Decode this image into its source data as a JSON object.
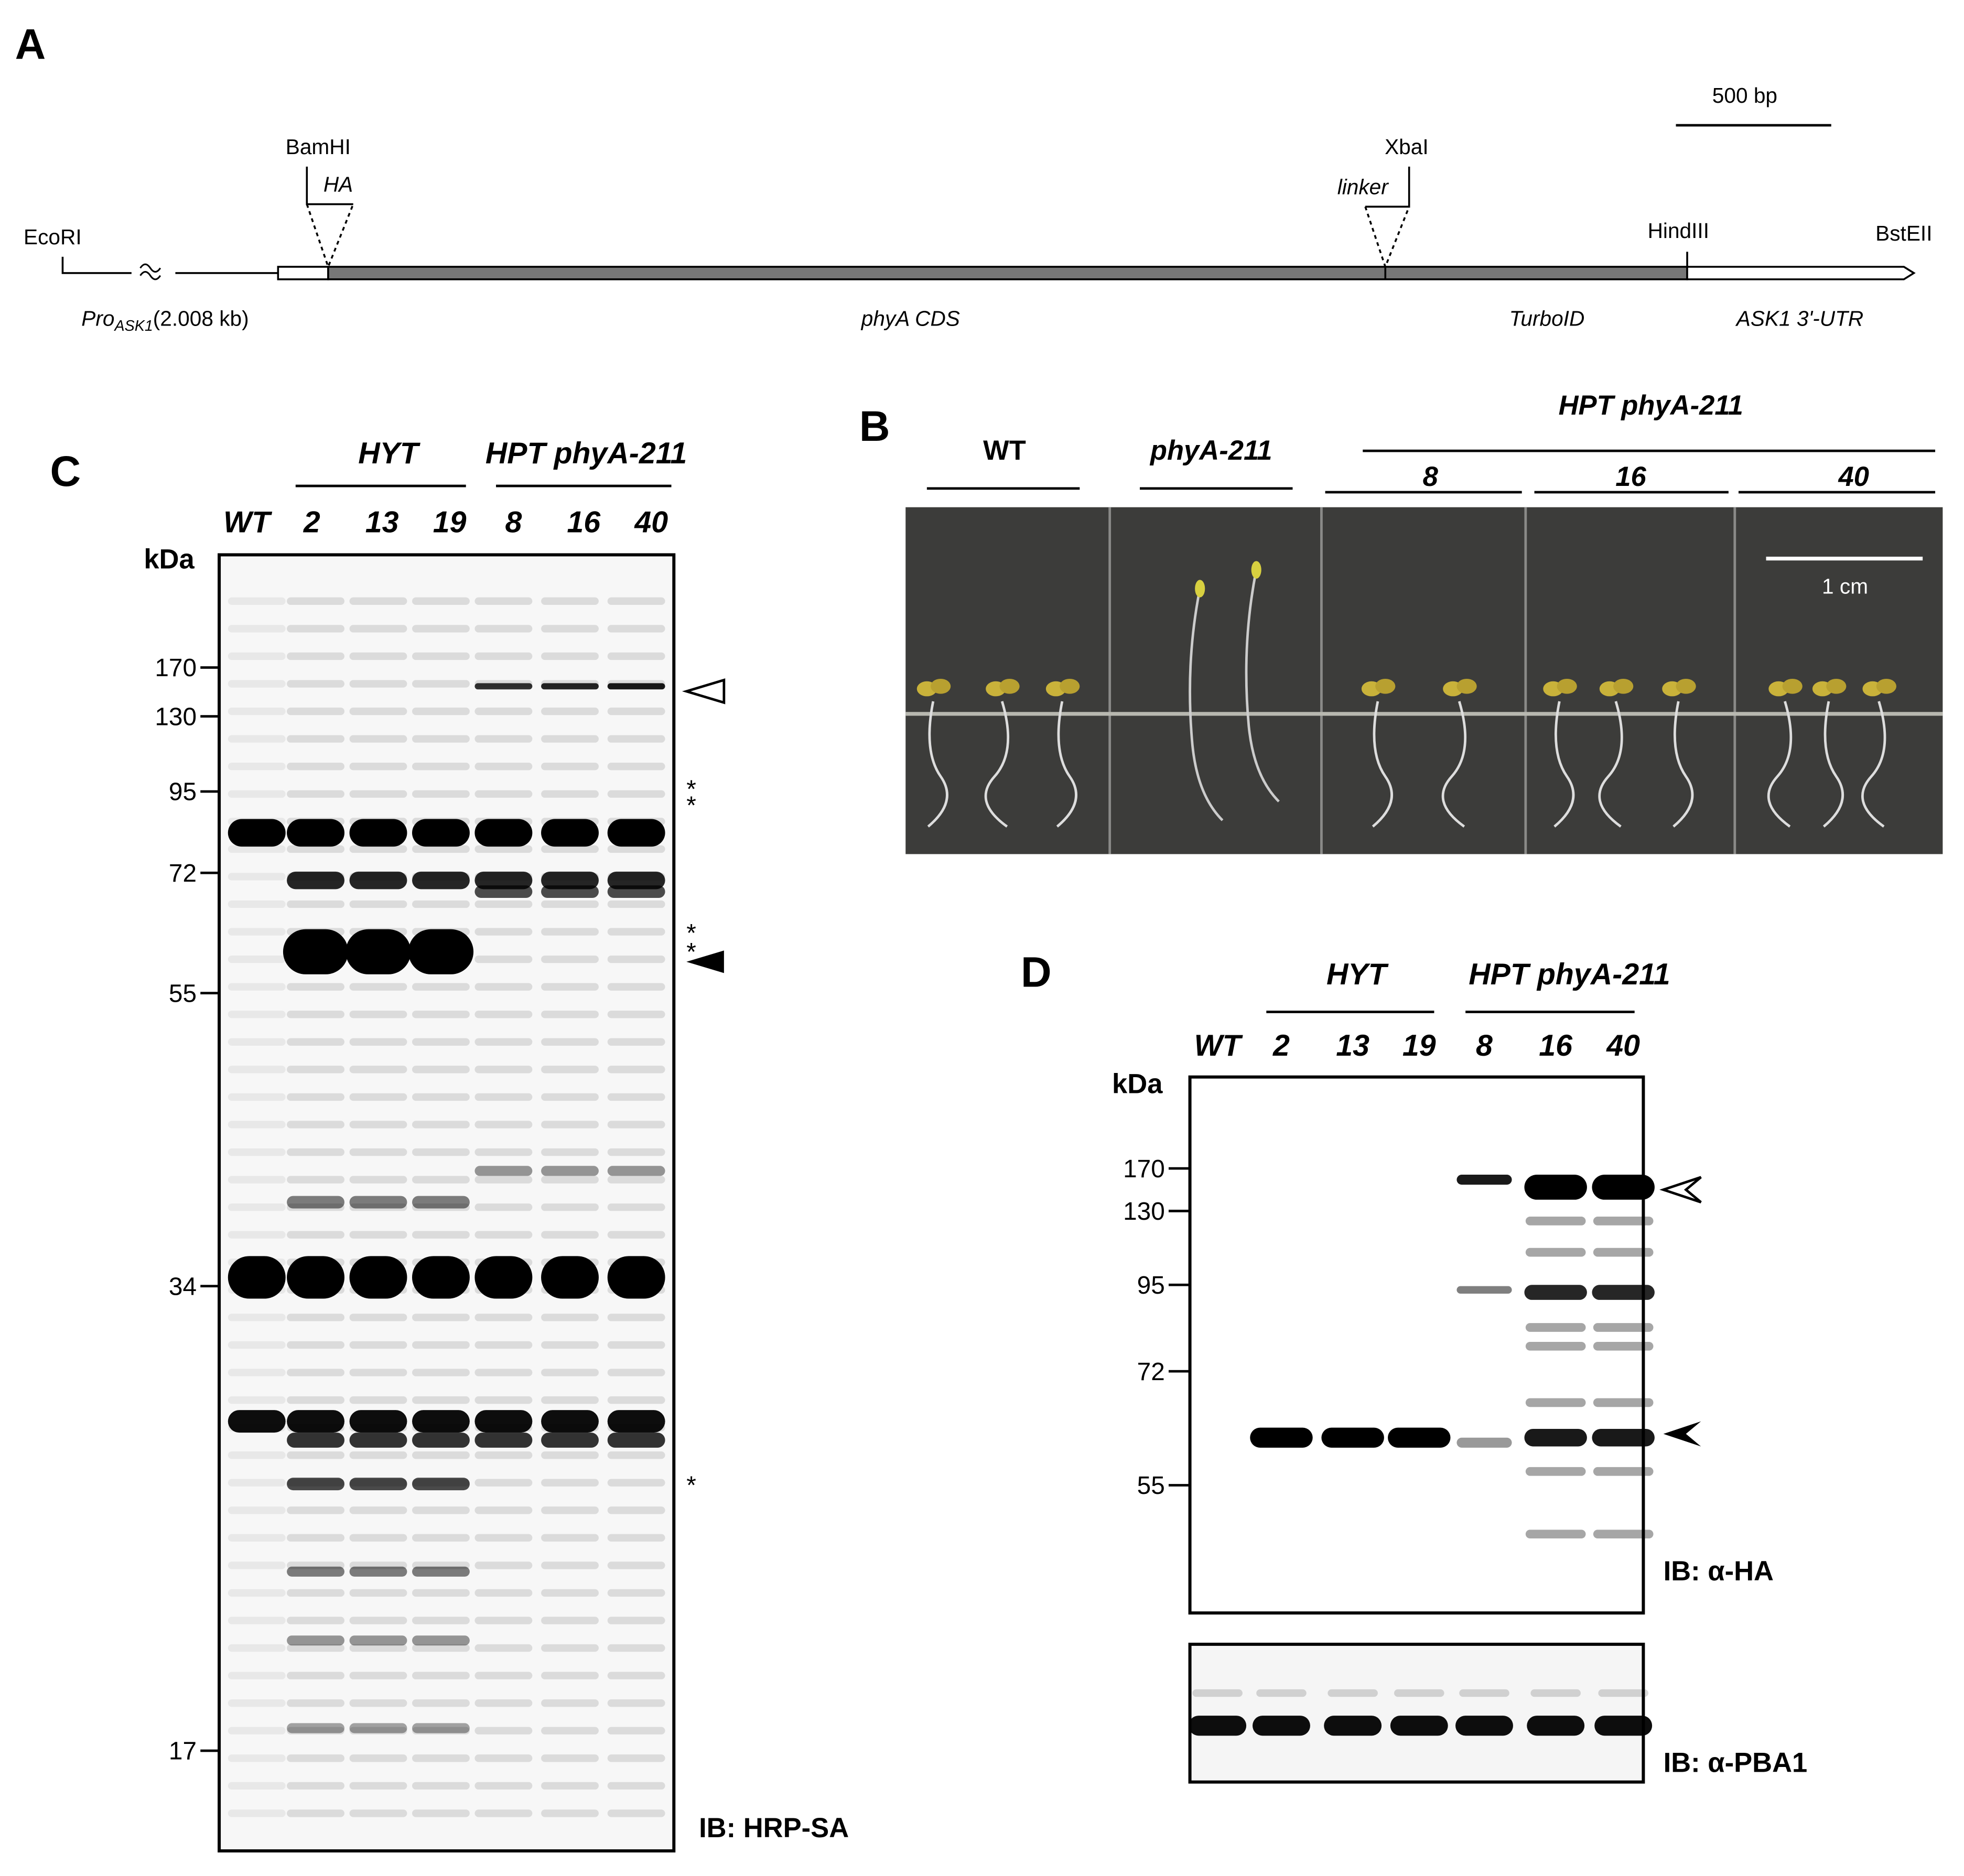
{
  "panel_a": {
    "label": "A",
    "scale_bar": "500 bp",
    "sites": [
      "EcoRI",
      "BamHI",
      "XbaI",
      "HindIII",
      "BstEII"
    ],
    "tags": [
      "HA",
      "linker"
    ],
    "promoter": "Pro",
    "promoter_sub": "ASK1",
    "promoter_size": "(2.008 kb)",
    "regions": [
      "phyA CDS",
      "TurboID",
      "ASK1 3'-UTR"
    ]
  },
  "panel_b": {
    "label": "B",
    "genotypes": [
      "WT",
      "phyA-211"
    ],
    "group": "HPT phyA-211",
    "lines": [
      "8",
      "16",
      "40"
    ],
    "scale_bar": "1 cm"
  },
  "panel_c": {
    "label": "C",
    "groups": [
      "HYT",
      "HPT phyA-211"
    ],
    "lanes": [
      "WT",
      "2",
      "13",
      "19",
      "8",
      "16",
      "40"
    ],
    "unit": "kDa",
    "markers": [
      "170",
      "130",
      "95",
      "72",
      "55",
      "34",
      "17"
    ],
    "asterisks": [
      "*",
      "*",
      "*",
      "*",
      "*"
    ],
    "antibody": "IB: HRP-SA"
  },
  "panel_d": {
    "label": "D",
    "groups": [
      "HYT",
      "HPT phyA-211"
    ],
    "lanes": [
      "WT",
      "2",
      "13",
      "19",
      "8",
      "16",
      "40"
    ],
    "unit": "kDa",
    "markers": [
      "170",
      "130",
      "95",
      "72",
      "55"
    ],
    "antibodies": [
      "IB: α-HA",
      "IB: α-PBA1"
    ]
  }
}
